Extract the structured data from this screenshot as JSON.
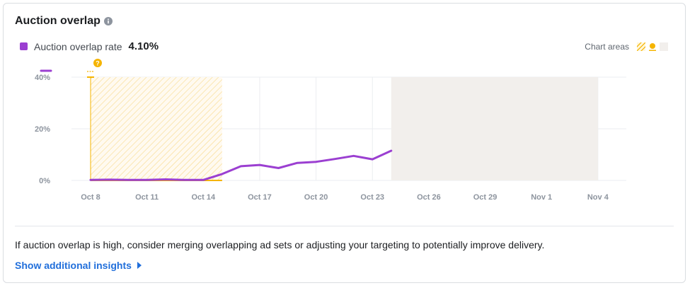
{
  "card": {
    "title": "Auction overlap",
    "legend": {
      "label": "Auction overlap rate",
      "value": "4.10%",
      "color": "#9b3fd1"
    },
    "chart_areas_label": "Chart areas",
    "footer_text": "If auction overlap is high, consider merging overlapping ad sets or adjusting your targeting to potentially improve delivery.",
    "insights_link": "Show additional insights"
  },
  "icons": {
    "info": "info-icon",
    "hatch_area": "hatched-area-icon",
    "marker": "learning-marker-icon",
    "shaded_area": "shaded-area-icon"
  },
  "chart_data": {
    "type": "line",
    "series": [
      {
        "name": "Auction overlap rate",
        "color": "#9b3fd1",
        "x": [
          "Oct 8",
          "Oct 9",
          "Oct 10",
          "Oct 11",
          "Oct 12",
          "Oct 13",
          "Oct 14",
          "Oct 15",
          "Oct 16",
          "Oct 17",
          "Oct 18",
          "Oct 19",
          "Oct 20",
          "Oct 21",
          "Oct 22",
          "Oct 23",
          "Oct 24"
        ],
        "values": [
          0.2,
          0.3,
          0.2,
          0.2,
          0.4,
          0.2,
          0.2,
          2.5,
          5.5,
          6.0,
          4.8,
          6.8,
          7.2,
          8.3,
          9.5,
          8.2,
          11.5
        ]
      }
    ],
    "x_ticks": [
      "Oct 8",
      "Oct 11",
      "Oct 14",
      "Oct 17",
      "Oct 20",
      "Oct 23",
      "Oct 26",
      "Oct 29",
      "Nov 1",
      "Nov 4"
    ],
    "y_ticks": [
      "0%",
      "20%",
      "40%"
    ],
    "ylim": [
      0,
      40
    ],
    "xlim": [
      "Oct 8",
      "Nov 5"
    ],
    "hatched_area": {
      "from": "Oct 8",
      "to": "Oct 15",
      "color": "#f5b400"
    },
    "shaded_area": {
      "from": "Oct 24",
      "to": "Nov 4",
      "color": "#f2efec"
    },
    "marker": {
      "date": "Oct 8",
      "label": "?",
      "color": "#f5b400"
    },
    "grid": true
  }
}
